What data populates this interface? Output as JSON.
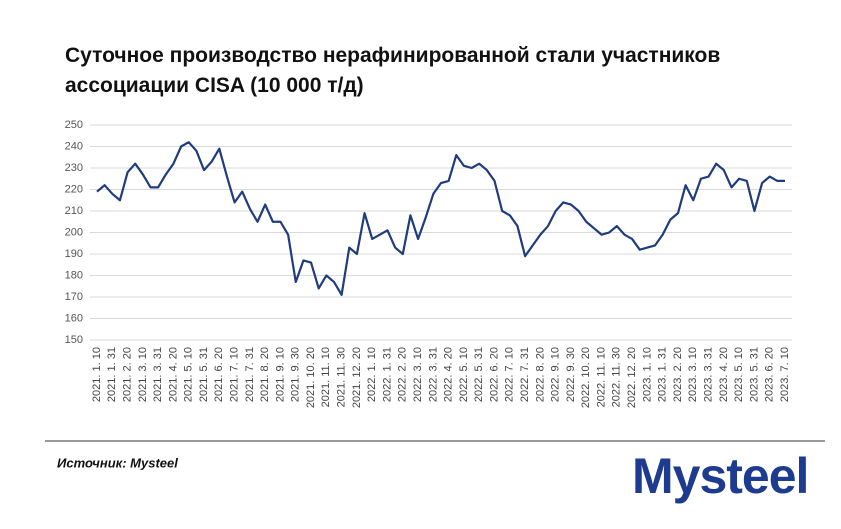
{
  "chart_data": {
    "type": "line",
    "title": "Суточное производство нерафинированной стали участников ассоциации CISA (10 000 т/д)",
    "categories": [
      "2021. 1. 10",
      null,
      "2021. 1. 31",
      null,
      "2021. 2. 20",
      null,
      "2021. 3. 10",
      null,
      "2021. 3. 31",
      null,
      "2021. 4. 20",
      null,
      "2021. 5. 10",
      null,
      "2021. 5. 31",
      null,
      "2021. 6. 20",
      null,
      "2021. 7. 10",
      null,
      "2021. 7. 31",
      null,
      "2021. 8. 20",
      null,
      "2021. 9. 10",
      null,
      "2021. 9. 30",
      null,
      "2021. 10. 20",
      null,
      "2021. 11. 10",
      null,
      "2021. 11. 30",
      null,
      "2021. 12. 20",
      null,
      "2022. 1. 10",
      null,
      "2022. 1. 31",
      null,
      "2022. 2. 20",
      null,
      "2022. 3. 10",
      null,
      "2022. 3. 31",
      null,
      "2022. 4. 20",
      null,
      "2022. 5. 10",
      null,
      "2022. 5. 31",
      null,
      "2022. 6. 20",
      null,
      "2022. 7. 10",
      null,
      "2022. 7. 31",
      null,
      "2022. 8. 20",
      null,
      "2022. 9. 10",
      null,
      "2022. 9. 30",
      null,
      "2022. 10. 20",
      null,
      "2022. 11. 10",
      null,
      "2022. 11. 30",
      null,
      "2022. 12. 20",
      null,
      "2023. 1. 10",
      null,
      "2023. 1. 31",
      null,
      "2023. 2. 20",
      null,
      "2023. 3. 10",
      null,
      "2023. 3. 31",
      null,
      "2023. 4. 20",
      null,
      "2023. 5. 10",
      null,
      "2023. 5. 31",
      null,
      "2023. 6. 20",
      null,
      "2023. 7. 10"
    ],
    "values": [
      219,
      222,
      218,
      215,
      228,
      232,
      227,
      221,
      221,
      227,
      232,
      240,
      242,
      238,
      229,
      233,
      239,
      226,
      214,
      219,
      211,
      205,
      213,
      205,
      205,
      199,
      177,
      187,
      186,
      174,
      180,
      177,
      171,
      193,
      190,
      209,
      197,
      199,
      201,
      193,
      190,
      208,
      197,
      207,
      218,
      223,
      224,
      236,
      231,
      230,
      232,
      229,
      224,
      210,
      208,
      203,
      189,
      194,
      199,
      203,
      210,
      214,
      213,
      210,
      205,
      202,
      199,
      200,
      203,
      199,
      197,
      192,
      193,
      194,
      199,
      206,
      209,
      222,
      215,
      225,
      226,
      232,
      229,
      221,
      225,
      224,
      210,
      223,
      226,
      224,
      224
    ],
    "color": "#1f3c7c",
    "ylim": [
      150,
      250
    ],
    "yticks": [
      150,
      160,
      170,
      180,
      190,
      200,
      210,
      220,
      230,
      240,
      250
    ],
    "grid": true,
    "source": "Источник: Mysteel",
    "logo": "Mysteel"
  }
}
